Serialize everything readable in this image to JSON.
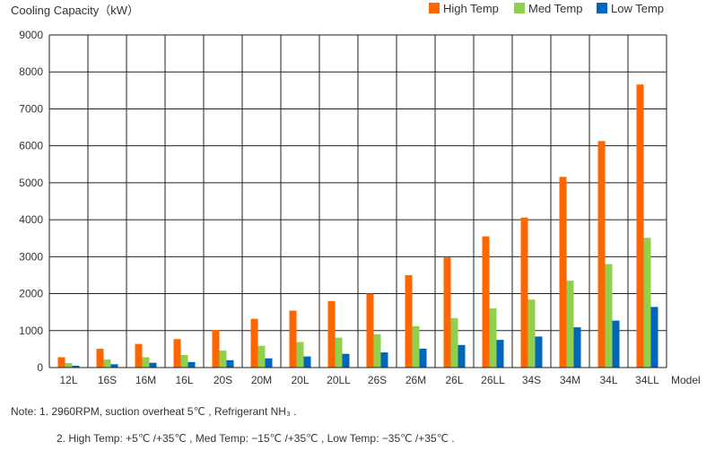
{
  "chart_data": {
    "type": "bar",
    "title": "",
    "ylabel": "Cooling Capacity（kW）",
    "xlabel": "Model",
    "ylim": [
      0,
      9000
    ],
    "yticks": [
      0,
      1000,
      2000,
      3000,
      4000,
      5000,
      6000,
      7000,
      8000,
      9000
    ],
    "grid": true,
    "legend_position": "top-right",
    "categories": [
      "12L",
      "16S",
      "16M",
      "16L",
      "20S",
      "20M",
      "20L",
      "20LL",
      "26S",
      "26M",
      "26L",
      "26LL",
      "34S",
      "34M",
      "34L",
      "34LL"
    ],
    "series": [
      {
        "name": "High Temp",
        "color": "#ff6600",
        "values": [
          280,
          510,
          640,
          770,
          1020,
          1320,
          1540,
          1800,
          2000,
          2500,
          2980,
          3550,
          4060,
          5160,
          6130,
          7660
        ]
      },
      {
        "name": "Med Temp",
        "color": "#8fd14f",
        "values": [
          120,
          220,
          280,
          340,
          460,
          590,
          690,
          810,
          900,
          1120,
          1340,
          1600,
          1840,
          2350,
          2800,
          3510
        ]
      },
      {
        "name": "Low Temp",
        "color": "#0066bb",
        "values": [
          50,
          90,
          130,
          150,
          200,
          250,
          300,
          370,
          410,
          510,
          610,
          750,
          840,
          1090,
          1270,
          1640
        ]
      }
    ]
  },
  "notes": {
    "line1": "Note:  1. 2960RPM, suction overheat 5℃ ,  Refrigerant NH₃ .",
    "line2": "2. High Temp: +5℃ /+35℃ , Med Temp: −15℃ /+35℃ , Low Temp: −35℃ /+35℃ ."
  }
}
